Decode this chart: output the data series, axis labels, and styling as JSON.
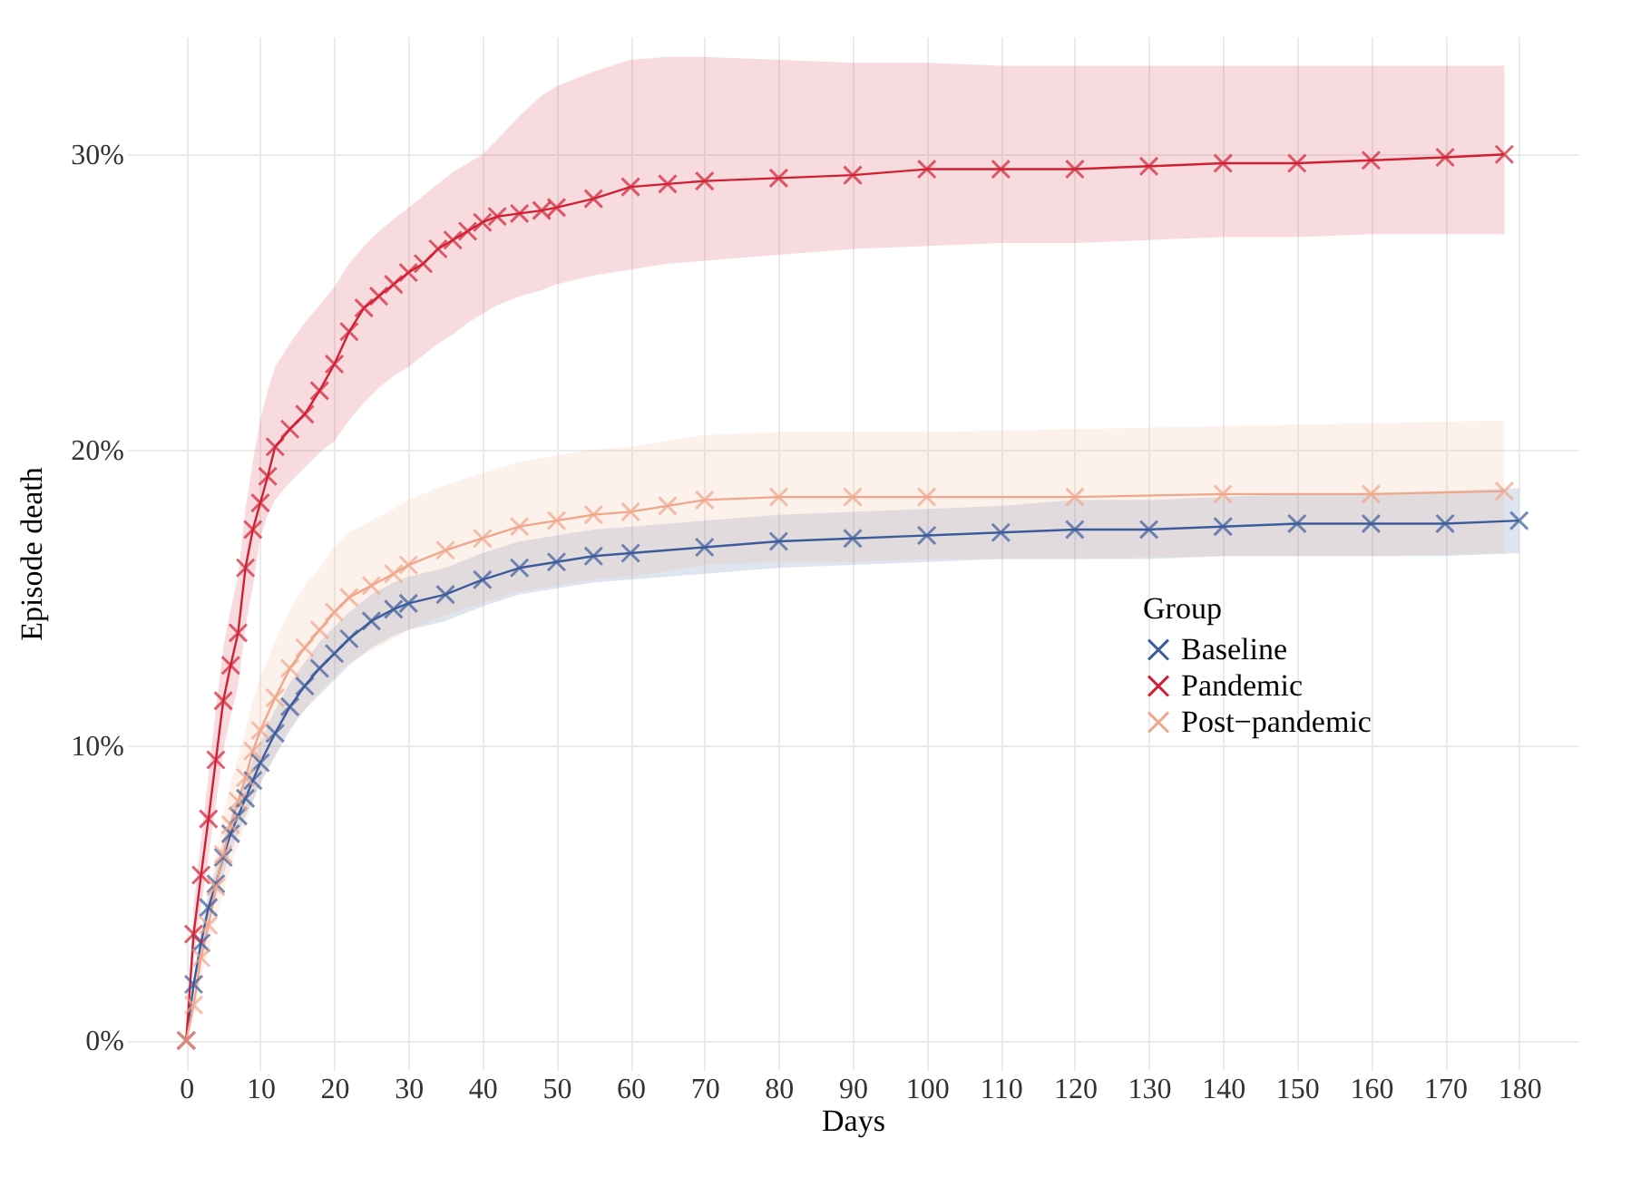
{
  "chart_data": {
    "type": "line",
    "xlabel": "Days",
    "ylabel": "Episode death",
    "legend_title": "Group",
    "xlim": [
      -8,
      188
    ],
    "xticks": [
      0,
      10,
      20,
      30,
      40,
      50,
      60,
      70,
      80,
      90,
      100,
      110,
      120,
      130,
      140,
      150,
      160,
      170,
      180
    ],
    "ylim": [
      -1,
      34
    ],
    "yticks": [
      {
        "value": 0,
        "label": "0%"
      },
      {
        "value": 10,
        "label": "10%"
      },
      {
        "value": 20,
        "label": "20%"
      },
      {
        "value": 30,
        "label": "30%"
      }
    ],
    "grid": true,
    "legend": "right",
    "marker": "cross",
    "line_style": "solid",
    "series": [
      {
        "name": "Baseline",
        "color": "#3b5b9a",
        "x": [
          0,
          1,
          2,
          3,
          4,
          5,
          6,
          7,
          8,
          9,
          10,
          12,
          14,
          16,
          18,
          20,
          22,
          25,
          28,
          30,
          35,
          40,
          45,
          50,
          55,
          60,
          70,
          80,
          90,
          100,
          110,
          120,
          130,
          140,
          150,
          160,
          170,
          180
        ],
        "values": [
          0,
          1.9,
          3.3,
          4.5,
          5.3,
          6.2,
          7.0,
          7.6,
          8.2,
          8.8,
          9.4,
          10.4,
          11.3,
          12.0,
          12.6,
          13.1,
          13.6,
          14.2,
          14.6,
          14.8,
          15.1,
          15.6,
          16.0,
          16.2,
          16.4,
          16.5,
          16.7,
          16.9,
          17.0,
          17.1,
          17.2,
          17.3,
          17.3,
          17.4,
          17.5,
          17.5,
          17.5,
          17.6
        ],
        "lower": [
          0,
          1.6,
          2.9,
          4.0,
          4.8,
          5.6,
          6.4,
          7.0,
          7.6,
          8.1,
          8.7,
          9.6,
          10.5,
          11.2,
          11.7,
          12.2,
          12.7,
          13.3,
          13.7,
          13.9,
          14.2,
          14.7,
          15.1,
          15.3,
          15.5,
          15.6,
          15.8,
          16.0,
          16.1,
          16.2,
          16.3,
          16.3,
          16.3,
          16.4,
          16.4,
          16.4,
          16.4,
          16.5
        ],
        "upper": [
          0,
          2.2,
          3.7,
          5.0,
          5.8,
          6.8,
          7.6,
          8.2,
          8.8,
          9.5,
          10.1,
          11.2,
          12.1,
          12.8,
          13.5,
          14.0,
          14.5,
          15.1,
          15.5,
          15.7,
          16.0,
          16.5,
          16.9,
          17.1,
          17.3,
          17.4,
          17.6,
          17.8,
          17.9,
          18.0,
          18.1,
          18.3,
          18.3,
          18.4,
          18.5,
          18.5,
          18.6,
          18.7
        ]
      },
      {
        "name": "Pandemic",
        "color": "#d21f33",
        "x": [
          0,
          1,
          2,
          3,
          4,
          5,
          6,
          7,
          8,
          9,
          10,
          11,
          12,
          14,
          16,
          18,
          20,
          22,
          24,
          26,
          28,
          30,
          32,
          34,
          36,
          38,
          40,
          42,
          45,
          48,
          50,
          55,
          60,
          65,
          70,
          80,
          90,
          100,
          110,
          120,
          130,
          140,
          150,
          160,
          170,
          178
        ],
        "values": [
          0,
          3.6,
          5.6,
          7.5,
          9.5,
          11.5,
          12.7,
          13.8,
          16.0,
          17.3,
          18.2,
          19.1,
          20.1,
          20.7,
          21.2,
          22.0,
          22.9,
          24.0,
          24.8,
          25.2,
          25.6,
          26.0,
          26.3,
          26.8,
          27.1,
          27.4,
          27.7,
          27.9,
          28.0,
          28.1,
          28.2,
          28.5,
          28.9,
          29.0,
          29.1,
          29.2,
          29.3,
          29.5,
          29.5,
          29.5,
          29.6,
          29.7,
          29.7,
          29.8,
          29.9,
          30.0
        ],
        "lower": [
          0,
          2.8,
          4.5,
          6.2,
          8.0,
          9.8,
          11.0,
          12.0,
          14.0,
          15.4,
          17.0,
          17.8,
          18.3,
          18.9,
          19.4,
          19.9,
          20.3,
          21.0,
          21.6,
          22.1,
          22.5,
          22.8,
          23.2,
          23.6,
          23.9,
          24.3,
          24.6,
          24.9,
          25.2,
          25.4,
          25.6,
          25.9,
          26.1,
          26.3,
          26.4,
          26.6,
          26.8,
          26.9,
          27.0,
          27.0,
          27.1,
          27.2,
          27.2,
          27.3,
          27.3,
          27.3
        ],
        "upper": [
          0,
          4.6,
          6.8,
          9.0,
          11.2,
          13.3,
          14.6,
          15.7,
          18.0,
          19.6,
          21.0,
          22.0,
          22.8,
          23.6,
          24.3,
          24.9,
          25.5,
          26.3,
          26.9,
          27.4,
          27.8,
          28.2,
          28.6,
          29.0,
          29.4,
          29.7,
          30.0,
          30.5,
          31.3,
          32.0,
          32.3,
          32.8,
          33.2,
          33.3,
          33.3,
          33.2,
          33.1,
          33.1,
          33.0,
          33.0,
          33.0,
          33.0,
          33.0,
          33.0,
          33.0,
          33.0
        ]
      },
      {
        "name": "Post−pandemic",
        "color": "#f0a68b",
        "x": [
          0,
          1,
          2,
          3,
          4,
          5,
          6,
          7,
          8,
          9,
          10,
          12,
          14,
          16,
          18,
          20,
          22,
          25,
          28,
          30,
          35,
          40,
          45,
          50,
          55,
          60,
          65,
          70,
          80,
          90,
          100,
          120,
          140,
          160,
          178
        ],
        "values": [
          0,
          1.2,
          2.8,
          3.9,
          5.2,
          6.3,
          7.3,
          8.1,
          8.9,
          9.8,
          10.5,
          11.6,
          12.6,
          13.3,
          13.9,
          14.5,
          15.0,
          15.4,
          15.8,
          16.1,
          16.6,
          17.0,
          17.4,
          17.6,
          17.8,
          17.9,
          18.1,
          18.3,
          18.4,
          18.4,
          18.4,
          18.4,
          18.5,
          18.5,
          18.6
        ],
        "lower": [
          0,
          0.7,
          2.1,
          3.0,
          4.1,
          5.0,
          5.9,
          6.6,
          7.3,
          8.1,
          8.7,
          9.7,
          10.6,
          11.2,
          11.8,
          12.3,
          12.8,
          13.2,
          13.6,
          13.9,
          14.4,
          14.8,
          15.2,
          15.4,
          15.6,
          15.7,
          15.9,
          16.1,
          16.2,
          16.2,
          16.3,
          16.3,
          16.4,
          16.4,
          16.5
        ],
        "upper": [
          0,
          1.7,
          3.5,
          4.8,
          6.3,
          7.6,
          8.7,
          9.6,
          10.5,
          11.5,
          12.3,
          13.5,
          14.6,
          15.4,
          16.0,
          16.7,
          17.2,
          17.6,
          18.0,
          18.3,
          18.8,
          19.2,
          19.6,
          19.8,
          20.0,
          20.1,
          20.3,
          20.5,
          20.6,
          20.6,
          20.6,
          20.7,
          20.8,
          20.9,
          21.0
        ]
      }
    ]
  }
}
